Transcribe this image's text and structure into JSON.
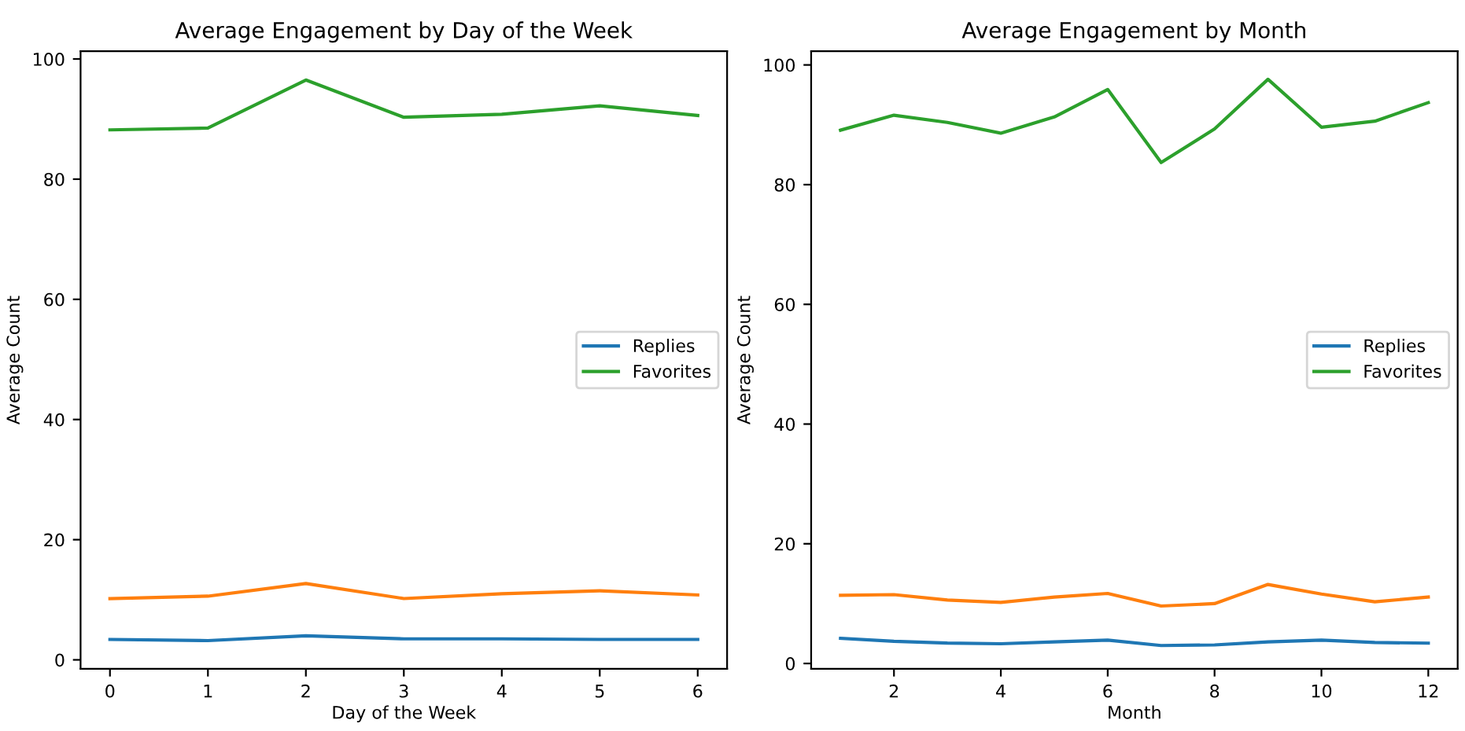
{
  "chart_data": [
    {
      "type": "line",
      "title": "Average Engagement by Day of the Week",
      "xlabel": "Day of the Week",
      "ylabel": "Average Count",
      "x": [
        0,
        1,
        2,
        3,
        4,
        5,
        6
      ],
      "xlim": [
        -0.3,
        6.3
      ],
      "xticks": [
        0,
        1,
        2,
        3,
        4,
        5,
        6
      ],
      "ylim": [
        -1.5,
        101.3
      ],
      "yticks": [
        0,
        20,
        40,
        60,
        80,
        100
      ],
      "grid": false,
      "legend": "center right",
      "series": [
        {
          "name": "Replies",
          "color": "#1f77b4",
          "values": [
            3.4,
            3.2,
            4.0,
            3.5,
            3.5,
            3.4,
            3.4
          ]
        },
        {
          "color": "#ff7f0e",
          "values": [
            10.2,
            10.6,
            12.7,
            10.2,
            11.0,
            11.5,
            10.8
          ]
        },
        {
          "name": "Favorites",
          "color": "#2ca02c",
          "values": [
            88.2,
            88.5,
            96.5,
            90.3,
            90.8,
            92.2,
            90.6
          ]
        }
      ]
    },
    {
      "type": "line",
      "title": "Average Engagement by Month",
      "xlabel": "Month",
      "ylabel": "Average Count",
      "x": [
        1,
        2,
        3,
        4,
        5,
        6,
        7,
        8,
        9,
        10,
        11,
        12
      ],
      "xlim": [
        0.45,
        12.55
      ],
      "xticks": [
        2,
        4,
        6,
        8,
        10,
        12
      ],
      "ylim": [
        -0.9,
        102.3
      ],
      "yticks": [
        0,
        20,
        40,
        60,
        80,
        100
      ],
      "grid": false,
      "legend": "center right",
      "series": [
        {
          "name": "Replies",
          "color": "#1f77b4",
          "values": [
            4.2,
            3.7,
            3.4,
            3.3,
            3.6,
            3.9,
            3.0,
            3.1,
            3.6,
            3.9,
            3.5,
            3.4
          ]
        },
        {
          "color": "#ff7f0e",
          "values": [
            11.4,
            11.5,
            10.6,
            10.2,
            11.1,
            11.7,
            9.6,
            10.0,
            13.2,
            11.6,
            10.3,
            11.1
          ]
        },
        {
          "name": "Favorites",
          "color": "#2ca02c",
          "values": [
            89.1,
            91.6,
            90.4,
            88.6,
            91.3,
            95.9,
            83.7,
            89.3,
            97.6,
            89.6,
            90.6,
            93.7
          ]
        }
      ]
    }
  ]
}
